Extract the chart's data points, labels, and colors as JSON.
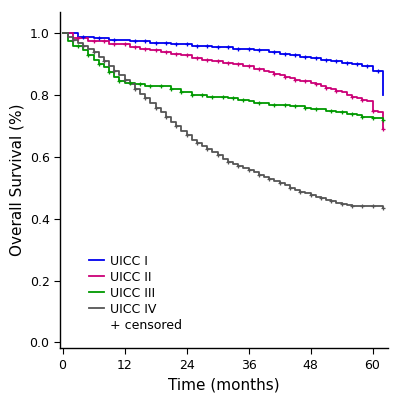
{
  "title": "",
  "xlabel": "Time (months)",
  "ylabel": "Overall Survival (%)",
  "xlim": [
    -0.5,
    63
  ],
  "ylim": [
    -0.02,
    1.07
  ],
  "xticks": [
    0,
    12,
    24,
    36,
    48,
    60
  ],
  "yticks": [
    0.0,
    0.2,
    0.4,
    0.6,
    0.8,
    1.0
  ],
  "background_color": "#ffffff",
  "curves": {
    "UICC I": {
      "color": "#0000ee",
      "steps": [
        [
          0,
          1.0
        ],
        [
          2,
          1.0
        ],
        [
          3,
          0.99
        ],
        [
          5,
          0.99
        ],
        [
          6,
          0.985
        ],
        [
          8,
          0.985
        ],
        [
          9,
          0.98
        ],
        [
          11,
          0.98
        ],
        [
          13,
          0.975
        ],
        [
          15,
          0.975
        ],
        [
          17,
          0.97
        ],
        [
          19,
          0.97
        ],
        [
          21,
          0.965
        ],
        [
          23,
          0.965
        ],
        [
          25,
          0.96
        ],
        [
          27,
          0.96
        ],
        [
          29,
          0.955
        ],
        [
          31,
          0.955
        ],
        [
          33,
          0.95
        ],
        [
          35,
          0.95
        ],
        [
          37,
          0.945
        ],
        [
          39,
          0.945
        ],
        [
          40,
          0.94
        ],
        [
          41,
          0.94
        ],
        [
          42,
          0.935
        ],
        [
          43,
          0.935
        ],
        [
          44,
          0.93
        ],
        [
          45,
          0.93
        ],
        [
          46,
          0.925
        ],
        [
          47,
          0.925
        ],
        [
          48,
          0.92
        ],
        [
          49,
          0.92
        ],
        [
          50,
          0.915
        ],
        [
          51,
          0.915
        ],
        [
          52,
          0.91
        ],
        [
          53,
          0.91
        ],
        [
          54,
          0.905
        ],
        [
          55,
          0.905
        ],
        [
          56,
          0.9
        ],
        [
          57,
          0.9
        ],
        [
          58,
          0.895
        ],
        [
          59,
          0.895
        ],
        [
          60,
          0.88
        ],
        [
          61,
          0.88
        ],
        [
          62,
          0.8
        ]
      ],
      "censored_x": [
        4,
        7,
        10,
        14,
        16,
        18,
        20,
        22,
        24,
        26,
        28,
        30,
        32,
        34,
        36,
        38,
        41,
        43,
        45,
        47,
        49,
        51,
        53,
        55,
        57,
        59,
        61
      ]
    },
    "UICC II": {
      "color": "#cc0077",
      "steps": [
        [
          0,
          1.0
        ],
        [
          1,
          1.0
        ],
        [
          2,
          0.985
        ],
        [
          4,
          0.985
        ],
        [
          5,
          0.975
        ],
        [
          7,
          0.975
        ],
        [
          9,
          0.965
        ],
        [
          11,
          0.965
        ],
        [
          13,
          0.955
        ],
        [
          15,
          0.95
        ],
        [
          17,
          0.945
        ],
        [
          19,
          0.94
        ],
        [
          21,
          0.935
        ],
        [
          23,
          0.93
        ],
        [
          25,
          0.92
        ],
        [
          27,
          0.915
        ],
        [
          29,
          0.91
        ],
        [
          31,
          0.905
        ],
        [
          33,
          0.9
        ],
        [
          35,
          0.895
        ],
        [
          37,
          0.885
        ],
        [
          39,
          0.88
        ],
        [
          40,
          0.875
        ],
        [
          41,
          0.87
        ],
        [
          42,
          0.865
        ],
        [
          43,
          0.86
        ],
        [
          44,
          0.855
        ],
        [
          45,
          0.85
        ],
        [
          46,
          0.845
        ],
        [
          47,
          0.845
        ],
        [
          48,
          0.84
        ],
        [
          49,
          0.835
        ],
        [
          50,
          0.83
        ],
        [
          51,
          0.825
        ],
        [
          52,
          0.82
        ],
        [
          53,
          0.815
        ],
        [
          54,
          0.81
        ],
        [
          55,
          0.8
        ],
        [
          56,
          0.795
        ],
        [
          57,
          0.79
        ],
        [
          58,
          0.785
        ],
        [
          59,
          0.78
        ],
        [
          60,
          0.75
        ],
        [
          61,
          0.745
        ],
        [
          62,
          0.69
        ]
      ],
      "censored_x": [
        3,
        6,
        8,
        10,
        12,
        14,
        16,
        18,
        20,
        22,
        24,
        26,
        28,
        30,
        32,
        34,
        36,
        38,
        41,
        43,
        45,
        47,
        49,
        51,
        53,
        56,
        58,
        60,
        62
      ]
    },
    "UICC III": {
      "color": "#009900",
      "steps": [
        [
          0,
          1.0
        ],
        [
          1,
          0.975
        ],
        [
          2,
          0.96
        ],
        [
          3,
          0.96
        ],
        [
          4,
          0.945
        ],
        [
          5,
          0.93
        ],
        [
          6,
          0.915
        ],
        [
          7,
          0.9
        ],
        [
          8,
          0.89
        ],
        [
          9,
          0.875
        ],
        [
          10,
          0.86
        ],
        [
          11,
          0.845
        ],
        [
          12,
          0.84
        ],
        [
          13,
          0.84
        ],
        [
          14,
          0.835
        ],
        [
          15,
          0.835
        ],
        [
          16,
          0.83
        ],
        [
          20,
          0.83
        ],
        [
          21,
          0.82
        ],
        [
          22,
          0.82
        ],
        [
          23,
          0.81
        ],
        [
          24,
          0.81
        ],
        [
          25,
          0.8
        ],
        [
          26,
          0.8
        ],
        [
          28,
          0.795
        ],
        [
          30,
          0.795
        ],
        [
          32,
          0.79
        ],
        [
          34,
          0.785
        ],
        [
          36,
          0.78
        ],
        [
          37,
          0.775
        ],
        [
          38,
          0.775
        ],
        [
          40,
          0.77
        ],
        [
          42,
          0.77
        ],
        [
          44,
          0.765
        ],
        [
          46,
          0.765
        ],
        [
          47,
          0.76
        ],
        [
          48,
          0.755
        ],
        [
          50,
          0.755
        ],
        [
          51,
          0.75
        ],
        [
          53,
          0.745
        ],
        [
          55,
          0.74
        ],
        [
          57,
          0.735
        ],
        [
          58,
          0.73
        ],
        [
          59,
          0.73
        ],
        [
          60,
          0.725
        ],
        [
          61,
          0.725
        ],
        [
          62,
          0.72
        ]
      ],
      "censored_x": [
        3,
        5,
        7,
        9,
        11,
        13,
        15,
        17,
        19,
        21,
        23,
        25,
        27,
        29,
        31,
        33,
        35,
        38,
        41,
        43,
        45,
        47,
        49,
        52,
        54,
        56,
        58,
        60,
        62
      ]
    },
    "UICC IV": {
      "color": "#555555",
      "steps": [
        [
          0,
          1.0
        ],
        [
          1,
          0.99
        ],
        [
          2,
          0.98
        ],
        [
          3,
          0.97
        ],
        [
          4,
          0.96
        ],
        [
          5,
          0.95
        ],
        [
          6,
          0.94
        ],
        [
          7,
          0.925
        ],
        [
          8,
          0.91
        ],
        [
          9,
          0.895
        ],
        [
          10,
          0.88
        ],
        [
          11,
          0.865
        ],
        [
          12,
          0.85
        ],
        [
          13,
          0.835
        ],
        [
          14,
          0.82
        ],
        [
          15,
          0.805
        ],
        [
          16,
          0.79
        ],
        [
          17,
          0.775
        ],
        [
          18,
          0.76
        ],
        [
          19,
          0.745
        ],
        [
          20,
          0.73
        ],
        [
          21,
          0.715
        ],
        [
          22,
          0.7
        ],
        [
          23,
          0.685
        ],
        [
          24,
          0.67
        ],
        [
          25,
          0.655
        ],
        [
          26,
          0.645
        ],
        [
          27,
          0.635
        ],
        [
          28,
          0.625
        ],
        [
          29,
          0.615
        ],
        [
          30,
          0.605
        ],
        [
          31,
          0.595
        ],
        [
          32,
          0.585
        ],
        [
          33,
          0.578
        ],
        [
          34,
          0.571
        ],
        [
          35,
          0.564
        ],
        [
          36,
          0.557
        ],
        [
          37,
          0.55
        ],
        [
          38,
          0.543
        ],
        [
          39,
          0.536
        ],
        [
          40,
          0.529
        ],
        [
          41,
          0.522
        ],
        [
          42,
          0.515
        ],
        [
          43,
          0.508
        ],
        [
          44,
          0.501
        ],
        [
          45,
          0.494
        ],
        [
          46,
          0.487
        ],
        [
          47,
          0.482
        ],
        [
          48,
          0.477
        ],
        [
          49,
          0.472
        ],
        [
          50,
          0.467
        ],
        [
          51,
          0.462
        ],
        [
          52,
          0.457
        ],
        [
          53,
          0.452
        ],
        [
          54,
          0.447
        ],
        [
          55,
          0.445
        ],
        [
          56,
          0.443
        ],
        [
          57,
          0.441
        ],
        [
          58,
          0.44
        ],
        [
          59,
          0.44
        ],
        [
          60,
          0.44
        ],
        [
          61,
          0.44
        ],
        [
          62,
          0.435
        ]
      ],
      "censored_x": [
        2,
        4,
        6,
        8,
        10,
        12,
        14,
        16,
        18,
        20,
        22,
        24,
        26,
        28,
        30,
        32,
        34,
        36,
        38,
        40,
        42,
        44,
        46,
        48,
        50,
        52,
        54,
        56,
        58,
        60,
        62
      ]
    }
  },
  "legend_order": [
    "UICC I",
    "UICC II",
    "UICC III",
    "UICC IV"
  ],
  "censored_label": "+ censored"
}
